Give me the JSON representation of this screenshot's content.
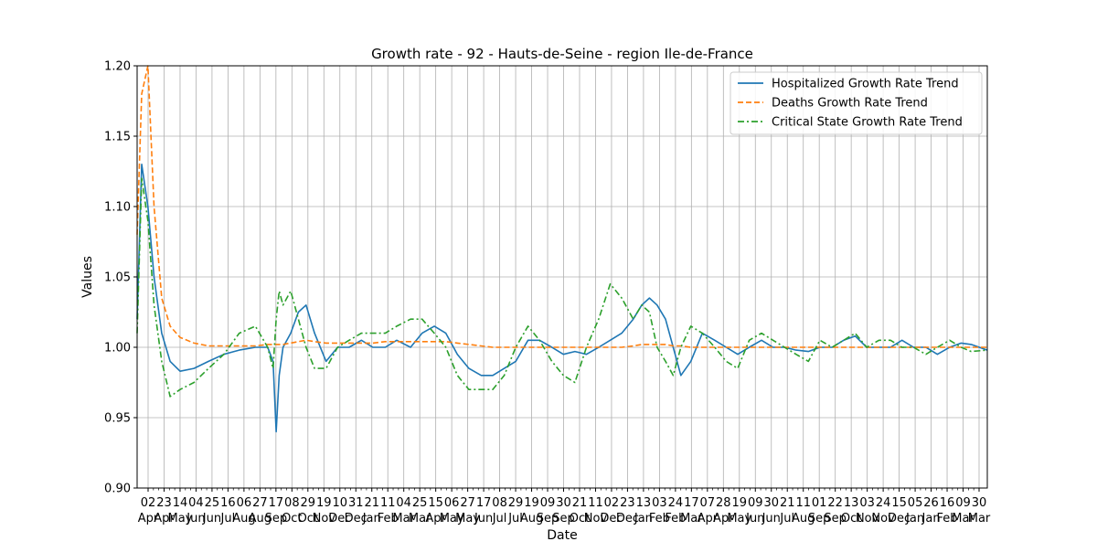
{
  "chart_data": {
    "type": "line",
    "title": "Growth rate - 92 - Hauts-de-Seine - region Ile-de-France",
    "xlabel": "Date",
    "ylabel": "Values",
    "ylim": [
      0.9,
      1.2
    ],
    "yticks": [
      "0.90",
      "0.95",
      "1.00",
      "1.05",
      "1.10",
      "1.15",
      "1.20"
    ],
    "grid": true,
    "legend_position": "top-right",
    "xtick_days": [
      "02",
      "23",
      "14",
      "04",
      "25",
      "16",
      "06",
      "27",
      "17",
      "08",
      "29",
      "19",
      "10",
      "31",
      "21",
      "11",
      "04",
      "25",
      "15",
      "06",
      "27",
      "17",
      "08",
      "29",
      "19",
      "09",
      "30",
      "21",
      "11",
      "02",
      "23",
      "13",
      "03",
      "24",
      "17",
      "07",
      "28",
      "19",
      "09",
      "30",
      "21",
      "11",
      "01",
      "22",
      "13",
      "03",
      "24",
      "15",
      "05",
      "26",
      "16",
      "09",
      "30"
    ],
    "xtick_months": [
      "Apr",
      "Apr",
      "May",
      "Jun",
      "Jun",
      "Jul",
      "Aug",
      "Aug",
      "Sep",
      "Oct",
      "Oct",
      "Nov",
      "Dec",
      "Dec",
      "Jan",
      "Feb",
      "Mar",
      "Mar",
      "Apr",
      "May",
      "May",
      "Jun",
      "Jul",
      "Jul",
      "Aug",
      "Sep",
      "Sep",
      "Oct",
      "Nov",
      "Dec",
      "Dec",
      "Jan",
      "Feb",
      "Feb",
      "Mar",
      "Apr",
      "Apr",
      "May",
      "Jun",
      "Jun",
      "Jul",
      "Aug",
      "Sep",
      "Sep",
      "Oct",
      "Nov",
      "Nov",
      "Dec",
      "Jan",
      "Jan",
      "Feb",
      "Mar",
      "Mar"
    ],
    "x": [
      "2020-03-19",
      "2020-03-25",
      "2020-04-02",
      "2020-04-10",
      "2020-04-20",
      "2020-05-01",
      "2020-05-14",
      "2020-06-01",
      "2020-06-20",
      "2020-07-10",
      "2020-07-30",
      "2020-08-20",
      "2020-09-05",
      "2020-09-12",
      "2020-09-16",
      "2020-09-20",
      "2020-09-25",
      "2020-10-05",
      "2020-10-15",
      "2020-10-25",
      "2020-11-05",
      "2020-11-20",
      "2020-12-05",
      "2020-12-20",
      "2021-01-05",
      "2021-01-20",
      "2021-02-05",
      "2021-02-20",
      "2021-03-10",
      "2021-03-25",
      "2021-04-10",
      "2021-04-25",
      "2021-05-10",
      "2021-05-25",
      "2021-06-10",
      "2021-06-25",
      "2021-07-10",
      "2021-07-25",
      "2021-08-10",
      "2021-08-25",
      "2021-09-10",
      "2021-09-25",
      "2021-10-10",
      "2021-10-25",
      "2021-11-10",
      "2021-11-25",
      "2021-12-10",
      "2021-12-25",
      "2022-01-05",
      "2022-01-15",
      "2022-01-25",
      "2022-02-05",
      "2022-02-15",
      "2022-02-25",
      "2022-03-10",
      "2022-03-25",
      "2022-04-10",
      "2022-04-25",
      "2022-05-10",
      "2022-05-25",
      "2022-06-10",
      "2022-06-25",
      "2022-07-10",
      "2022-07-25",
      "2022-08-10",
      "2022-08-25",
      "2022-09-10",
      "2022-09-25",
      "2022-10-10",
      "2022-10-25",
      "2022-11-10",
      "2022-11-25",
      "2022-12-10",
      "2022-12-25",
      "2023-01-10",
      "2023-01-25",
      "2023-02-10",
      "2023-02-25",
      "2023-03-10",
      "2023-03-31"
    ],
    "series": [
      {
        "name": "Hospitalized Growth Rate Trend",
        "color": "#1f77b4",
        "dash": "solid",
        "values": [
          1.02,
          1.13,
          1.1,
          1.05,
          1.01,
          0.99,
          0.983,
          0.985,
          0.99,
          0.995,
          0.998,
          1.0,
          1.0,
          0.99,
          0.94,
          0.98,
          1.0,
          1.01,
          1.025,
          1.03,
          1.01,
          0.99,
          1.0,
          1.0,
          1.005,
          1.0,
          1.0,
          1.005,
          1.0,
          1.01,
          1.015,
          1.01,
          0.995,
          0.985,
          0.98,
          0.98,
          0.985,
          0.99,
          1.005,
          1.005,
          1.0,
          0.995,
          0.997,
          0.995,
          1.0,
          1.005,
          1.01,
          1.02,
          1.03,
          1.035,
          1.03,
          1.02,
          1.0,
          0.98,
          0.99,
          1.01,
          1.005,
          1.0,
          0.995,
          1.0,
          1.005,
          1.0,
          1.0,
          0.998,
          0.997,
          1.0,
          1.0,
          1.005,
          1.008,
          1.0,
          1.0,
          1.0,
          1.005,
          1.0,
          1.0,
          0.995,
          1.0,
          1.003,
          1.002,
          0.998
        ]
      },
      {
        "name": "Deaths Growth Rate Trend",
        "color": "#ff7f0e",
        "dash": "dashed",
        "values": [
          1.08,
          1.18,
          1.2,
          1.1,
          1.035,
          1.015,
          1.007,
          1.003,
          1.001,
          1.001,
          1.001,
          1.001,
          1.002,
          1.002,
          1.002,
          1.002,
          1.002,
          1.003,
          1.004,
          1.005,
          1.004,
          1.003,
          1.003,
          1.003,
          1.003,
          1.003,
          1.004,
          1.004,
          1.004,
          1.004,
          1.004,
          1.004,
          1.003,
          1.002,
          1.001,
          1.0,
          1.0,
          1.0,
          1.0,
          1.0,
          1.0,
          1.0,
          1.0,
          1.0,
          1.0,
          1.0,
          1.0,
          1.001,
          1.002,
          1.002,
          1.002,
          1.002,
          1.001,
          1.001,
          1.0,
          1.0,
          1.0,
          1.0,
          1.0,
          1.0,
          1.0,
          1.0,
          1.0,
          1.0,
          1.0,
          1.0,
          1.0,
          1.0,
          1.0,
          1.0,
          1.0,
          1.0,
          1.0,
          1.0,
          1.0,
          1.0,
          1.0,
          1.0,
          1.0,
          1.0
        ]
      },
      {
        "name": "Critical State Growth Rate Trend",
        "color": "#2ca02c",
        "dash": "dashdot",
        "values": [
          1.01,
          1.12,
          1.09,
          1.03,
          0.99,
          0.965,
          0.97,
          0.975,
          0.985,
          0.995,
          1.01,
          1.015,
          1.0,
          0.985,
          1.02,
          1.04,
          1.03,
          1.04,
          1.02,
          1.0,
          0.985,
          0.985,
          1.0,
          1.005,
          1.01,
          1.01,
          1.01,
          1.015,
          1.02,
          1.02,
          1.01,
          1.0,
          0.98,
          0.97,
          0.97,
          0.97,
          0.98,
          1.0,
          1.015,
          1.005,
          0.99,
          0.98,
          0.975,
          1.0,
          1.02,
          1.045,
          1.035,
          1.02,
          1.03,
          1.025,
          1.0,
          0.99,
          0.98,
          1.0,
          1.015,
          1.01,
          1.0,
          0.99,
          0.985,
          1.005,
          1.01,
          1.005,
          1.0,
          0.995,
          0.99,
          1.005,
          1.0,
          1.005,
          1.01,
          1.0,
          1.005,
          1.005,
          1.0,
          1.0,
          0.995,
          1.0,
          1.005,
          1.0,
          0.997,
          0.998
        ]
      }
    ]
  }
}
